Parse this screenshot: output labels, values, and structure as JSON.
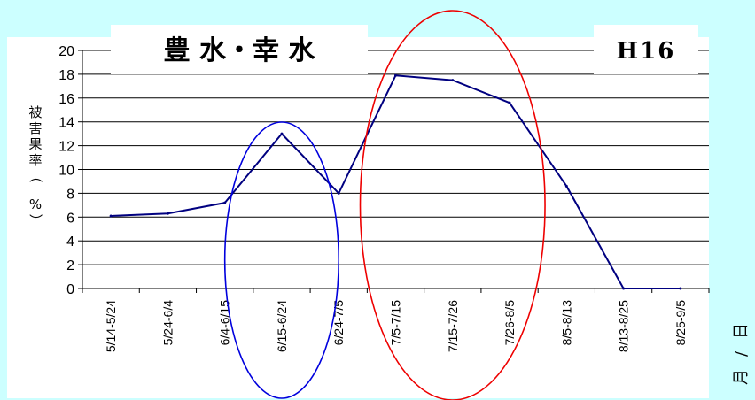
{
  "chart_data": {
    "type": "line",
    "title": "豊 水・幸 水",
    "tag": "H16",
    "ylabel": [
      "被",
      "害",
      "果",
      "率",
      "（",
      "%",
      "）"
    ],
    "xlabel": [
      "月",
      "/",
      "日"
    ],
    "ylim": [
      0,
      20
    ],
    "yticks": [
      0,
      2,
      4,
      6,
      8,
      10,
      12,
      14,
      16,
      18,
      20
    ],
    "grid": true,
    "categories": [
      "5/14-5/24",
      "5/24-6/4",
      "6/4-6/15",
      "6/15-6/24",
      "6/24-7/5",
      "7/5-7/15",
      "7/15-7/26",
      "7/26-8/5",
      "8/5-8/13",
      "8/13-8/25",
      "8/25-9/5"
    ],
    "series": [
      {
        "values": [
          6.1,
          6.3,
          7.2,
          13.0,
          8.0,
          17.9,
          17.5,
          15.6,
          8.6,
          0.0,
          0.0
        ],
        "color": "#000080"
      }
    ],
    "annotations": [
      {
        "shape": "ellipse",
        "color": "#0000dd",
        "around_categories": [
          "6/4-6/15",
          "6/15-6/24",
          "6/24-7/5"
        ]
      },
      {
        "shape": "ellipse",
        "color": "#ee0000",
        "around_categories": [
          "7/5-7/15",
          "7/15-7/26",
          "7/26-8/5"
        ]
      }
    ]
  },
  "colors": {
    "background": "#ccffff",
    "plot_background": "#ffffff",
    "grid": "#000000",
    "line": "#000080",
    "ellipse_blue": "#0000dd",
    "ellipse_red": "#ee0000"
  }
}
